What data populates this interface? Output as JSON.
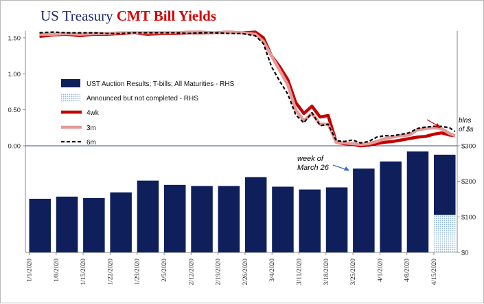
{
  "title": {
    "part1": "US Treasury ",
    "part2": "CMT Bill Yields"
  },
  "colors": {
    "title_blue": "#1f2a6b",
    "title_red": "#d40000",
    "bar_navy": "#0e1f5c",
    "bar_announced": "#c9dcf0",
    "line_4wk": "#c40000",
    "line_3m": "#e59a9a",
    "line_6m": "#000000",
    "arrow_red": "#cc0000",
    "annotation_arrow": "#3b6bb0"
  },
  "annotations": {
    "week_line1": "week of",
    "week_line2": "March 26",
    "bln_line1": "blns",
    "bln_line2": "of $s"
  },
  "chart_data": {
    "type": "bar+line",
    "title": "US Treasury CMT Bill Yields",
    "legend": [
      {
        "label": "UST Auction Results; T-bills; All Maturities - RHS",
        "kind": "bar"
      },
      {
        "label": "Announced but not completed - RHS",
        "kind": "bar-hatched"
      },
      {
        "label": "4wk",
        "kind": "line"
      },
      {
        "label": "3m",
        "kind": "line"
      },
      {
        "label": "6m",
        "kind": "line-dashed"
      }
    ],
    "legend_position": "left-middle",
    "left_axis": {
      "ticks": [
        "1.50",
        "1.00",
        "0.50",
        "0.00"
      ],
      "values": [
        1.5,
        1.0,
        0.5,
        0.0
      ],
      "range": [
        0,
        1.5
      ]
    },
    "right_axis": {
      "ticks": [
        "$300",
        "$200",
        "$100",
        "$0"
      ],
      "values": [
        300,
        200,
        100,
        0
      ],
      "range": [
        0,
        300
      ]
    },
    "x_ticks": [
      "1/1/2020",
      "1/8/2020",
      "1/15/2020",
      "1/22/2020",
      "1/29/2020",
      "2/5/2020",
      "2/12/2020",
      "2/19/2020",
      "2/26/2020",
      "3/4/2020",
      "3/11/2020",
      "3/18/2020",
      "3/25/2020",
      "4/1/2020",
      "4/8/2020",
      "4/15/2020"
    ],
    "bars": {
      "categories": [
        "1/1/2020",
        "1/8/2020",
        "1/15/2020",
        "1/22/2020",
        "1/29/2020",
        "2/5/2020",
        "2/12/2020",
        "2/19/2020",
        "2/26/2020",
        "3/4/2020",
        "3/11/2020",
        "3/18/2020",
        "3/25/2020",
        "4/1/2020",
        "4/8/2020",
        "4/15/2020"
      ],
      "completed": [
        151,
        157,
        153,
        169,
        202,
        190,
        187,
        187,
        212,
        185,
        177,
        183,
        236,
        256,
        284,
        170
      ],
      "announced_not_completed": [
        0,
        0,
        0,
        0,
        0,
        0,
        0,
        0,
        0,
        0,
        0,
        0,
        0,
        0,
        0,
        105
      ]
    },
    "lines": {
      "x_weeks": [
        0,
        0.5,
        1,
        1.5,
        2,
        2.5,
        3,
        3.5,
        4,
        4.5,
        5,
        5.5,
        6,
        6.5,
        7,
        7.5,
        8,
        8.3,
        8.6,
        8.9,
        9.2,
        9.5,
        9.8,
        10.1,
        10.4,
        10.7,
        11,
        11.3,
        11.6,
        11.9,
        12.2,
        12.5,
        12.8,
        13.1,
        13.4,
        13.7,
        14,
        14.3,
        14.6,
        14.9,
        15.2,
        15.4
      ],
      "series": [
        {
          "name": "4wk",
          "values": [
            1.52,
            1.54,
            1.55,
            1.53,
            1.55,
            1.55,
            1.56,
            1.57,
            1.55,
            1.56,
            1.56,
            1.57,
            1.57,
            1.57,
            1.58,
            1.57,
            1.58,
            1.5,
            1.25,
            1.1,
            0.92,
            0.6,
            0.45,
            0.55,
            0.4,
            0.42,
            0.05,
            0.03,
            0.02,
            0.0,
            0.01,
            0.03,
            0.05,
            0.06,
            0.08,
            0.1,
            0.12,
            0.13,
            0.16,
            0.18,
            0.15,
            0.14
          ]
        },
        {
          "name": "3m",
          "values": [
            1.55,
            1.55,
            1.56,
            1.55,
            1.56,
            1.56,
            1.57,
            1.57,
            1.57,
            1.57,
            1.57,
            1.58,
            1.58,
            1.57,
            1.58,
            1.57,
            1.55,
            1.45,
            1.25,
            1.05,
            0.85,
            0.5,
            0.35,
            0.45,
            0.3,
            0.3,
            0.05,
            0.04,
            0.03,
            0.02,
            0.03,
            0.06,
            0.1,
            0.12,
            0.14,
            0.15,
            0.22,
            0.24,
            0.25,
            0.24,
            0.17,
            0.14
          ]
        },
        {
          "name": "6m",
          "values": [
            1.57,
            1.58,
            1.57,
            1.57,
            1.57,
            1.56,
            1.56,
            1.57,
            1.57,
            1.57,
            1.57,
            1.56,
            1.57,
            1.57,
            1.56,
            1.56,
            1.53,
            1.42,
            1.1,
            0.9,
            0.72,
            0.43,
            0.32,
            0.46,
            0.28,
            0.3,
            0.07,
            0.06,
            0.08,
            0.04,
            0.06,
            0.12,
            0.14,
            0.14,
            0.16,
            0.18,
            0.24,
            0.26,
            0.27,
            0.27,
            0.25,
            0.2
          ]
        }
      ]
    }
  }
}
